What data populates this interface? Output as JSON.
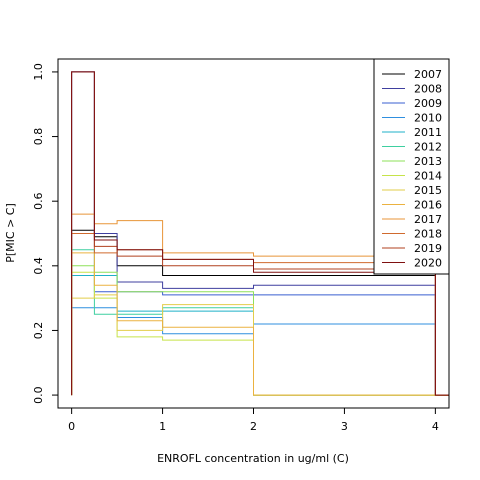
{
  "chart_data": {
    "type": "line",
    "step": true,
    "xlabel": "ENROFL concentration in ug/ml (C)",
    "ylabel": "P[MIC > C]",
    "xlim": [
      -0.15,
      4.15
    ],
    "ylim": [
      -0.04,
      1.04
    ],
    "x_ticks": [
      0,
      1,
      2,
      3,
      4
    ],
    "y_ticks": [
      0.0,
      0.2,
      0.4,
      0.6,
      0.8,
      1.0
    ],
    "x_tick_labels": [
      "0",
      "1",
      "2",
      "3",
      "4"
    ],
    "y_tick_labels": [
      "0.0",
      "0.2",
      "0.4",
      "0.6",
      "0.8",
      "1.0"
    ],
    "legend_position": "top-right",
    "series": [
      {
        "name": "2007",
        "color": "#000000",
        "x": [
          0,
          0.25,
          0.5,
          1,
          2,
          4
        ],
        "y": [
          0.51,
          0.49,
          0.4,
          0.37,
          0.37,
          0.0
        ]
      },
      {
        "name": "2008",
        "color": "#3f3f9f",
        "x": [
          0,
          0.25,
          0.5,
          1,
          2,
          4
        ],
        "y": [
          1.0,
          0.5,
          0.35,
          0.33,
          0.34,
          0.0
        ]
      },
      {
        "name": "2009",
        "color": "#3a5fd0",
        "x": [
          0,
          0.25,
          0.5,
          1,
          2,
          4
        ],
        "y": [
          1.0,
          0.32,
          0.32,
          0.31,
          0.31,
          0.0
        ]
      },
      {
        "name": "2010",
        "color": "#2f8fdf",
        "x": [
          0,
          0.25,
          0.5,
          1,
          2,
          4
        ],
        "y": [
          0.27,
          0.27,
          0.24,
          0.19,
          0.22,
          0.0
        ]
      },
      {
        "name": "2011",
        "color": "#1fb0c8",
        "x": [
          0,
          0.25,
          0.5,
          1,
          2,
          4
        ],
        "y": [
          0.37,
          0.37,
          0.26,
          0.26,
          0.0,
          0.0
        ]
      },
      {
        "name": "2012",
        "color": "#3ecfa0",
        "x": [
          0,
          0.25,
          0.5,
          1,
          2,
          4
        ],
        "y": [
          0.45,
          0.25,
          0.25,
          0.27,
          0.0,
          0.0
        ]
      },
      {
        "name": "2013",
        "color": "#8ee05a",
        "x": [
          0,
          0.25,
          0.5,
          1,
          2,
          4
        ],
        "y": [
          0.4,
          0.38,
          0.32,
          0.32,
          0.0,
          0.0
        ]
      },
      {
        "name": "2014",
        "color": "#c6e34a",
        "x": [
          0,
          0.25,
          0.5,
          1,
          2,
          4
        ],
        "y": [
          0.38,
          0.3,
          0.18,
          0.17,
          0.0,
          0.0
        ]
      },
      {
        "name": "2015",
        "color": "#e2cd4a",
        "x": [
          0,
          0.25,
          0.5,
          1,
          2,
          4
        ],
        "y": [
          0.3,
          0.31,
          0.2,
          0.28,
          0.0,
          0.0
        ]
      },
      {
        "name": "2016",
        "color": "#ebb240",
        "x": [
          0,
          0.25,
          0.5,
          1,
          2,
          4
        ],
        "y": [
          0.44,
          0.34,
          0.23,
          0.21,
          0.0,
          0.0
        ]
      },
      {
        "name": "2017",
        "color": "#e89538",
        "x": [
          0,
          0.25,
          0.5,
          1,
          2,
          4
        ],
        "y": [
          0.56,
          0.53,
          0.54,
          0.44,
          0.43,
          0.0
        ]
      },
      {
        "name": "2018",
        "color": "#d06a2e",
        "x": [
          0,
          0.25,
          0.5,
          1,
          2,
          4
        ],
        "y": [
          0.5,
          0.44,
          0.45,
          0.42,
          0.41,
          0.0
        ]
      },
      {
        "name": "2019",
        "color": "#b0401f",
        "x": [
          0,
          0.25,
          0.5,
          1,
          2,
          4
        ],
        "y": [
          1.0,
          0.46,
          0.43,
          0.4,
          0.39,
          0.0
        ]
      },
      {
        "name": "2020",
        "color": "#7f1010",
        "x": [
          0,
          0.25,
          0.5,
          1,
          2,
          4
        ],
        "y": [
          1.0,
          0.48,
          0.45,
          0.42,
          0.38,
          0.0
        ]
      }
    ]
  }
}
